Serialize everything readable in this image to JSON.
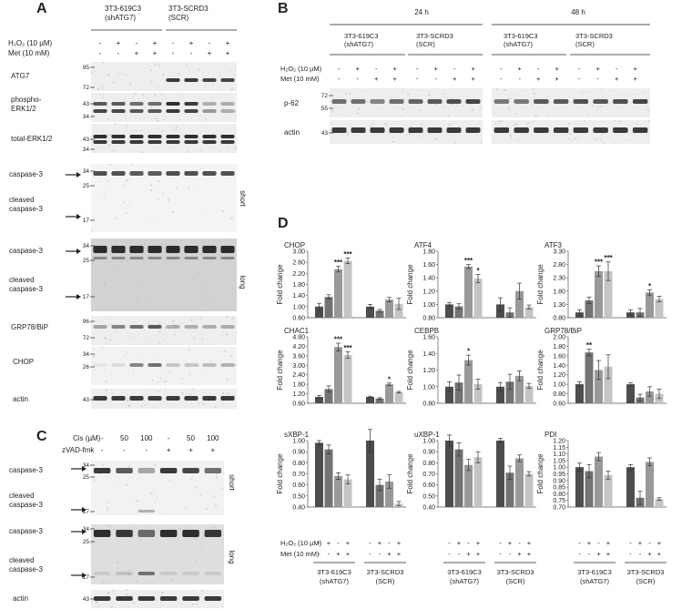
{
  "panels": {
    "A": {
      "letter": "A",
      "groups": [
        "3T3-619C3\n(shATG7)",
        "3T3-SCRD3\n(SCR)"
      ],
      "treatments": {
        "h2o2_label": "H₂O₂ (10 µM)",
        "met_label": "Met (10 mM)",
        "h2o2": [
          "-",
          "+",
          "-",
          "+",
          "-",
          "+",
          "-",
          "+"
        ],
        "met": [
          "-",
          "-",
          "+",
          "+",
          "-",
          "-",
          "+",
          "+"
        ]
      },
      "blots": [
        {
          "label": "ATG7",
          "markers": [
            "95",
            "72"
          ]
        },
        {
          "label": "phospho-\nERK1/2",
          "markers": [
            "43",
            "34"
          ]
        },
        {
          "label": "total-ERK1/2",
          "markers": [
            "43",
            "34"
          ]
        },
        {
          "label": "caspase-3\n\ncleaved\ncaspase-3",
          "markers": [
            "34",
            "25",
            "17"
          ],
          "side": "short"
        },
        {
          "label": "caspase-3\n\ncleaved\ncaspase-3",
          "markers": [
            "34",
            "25",
            "17"
          ],
          "side": "long"
        },
        {
          "label": "GRP78/BiP",
          "markers": [
            "96",
            "72"
          ]
        },
        {
          "label": "CHOP",
          "markers": [
            "34",
            "26"
          ]
        },
        {
          "label": "actin",
          "markers": [
            "43"
          ]
        }
      ]
    },
    "B": {
      "letter": "B",
      "timepoints": [
        "24 h",
        "48 h"
      ],
      "groups": [
        "3T3-619C3\n(shATG7)",
        "3T3-SCRD3\n(SCR)",
        "3T3-619C3\n(shATG7)",
        "3T3-SCRD3\n(SCR)"
      ],
      "h2o2_label": "H₂O₂ (10 µM)",
      "met_label": "Met (10 mM)",
      "h2o2": [
        "-",
        "+",
        "-",
        "+"
      ],
      "met": [
        "-",
        "-",
        "+",
        "+"
      ],
      "blots": [
        {
          "label": "p-62",
          "markers": [
            "72",
            "55"
          ]
        },
        {
          "label": "actin",
          "markers": [
            "43"
          ]
        }
      ]
    },
    "C": {
      "letter": "C",
      "cis_label": "Cis (µM)",
      "zvad_label": "zVAD-fmk",
      "cis": [
        "-",
        "50",
        "100",
        "-",
        "50",
        "100"
      ],
      "zvad": [
        "-",
        "-",
        "-",
        "+",
        "+",
        "+"
      ],
      "blots": [
        {
          "label": "caspase-3\n\ncleaved\ncaspase-3",
          "markers": [
            "34",
            "25",
            "17"
          ],
          "side": "short"
        },
        {
          "label": "caspase-3\n\ncleaved\ncaspase-3",
          "markers": [
            "34",
            "25",
            "17"
          ],
          "side": "long"
        },
        {
          "label": "actin",
          "markers": [
            "43"
          ]
        }
      ]
    },
    "D": {
      "letter": "D",
      "ylabel": "Fold change",
      "bottom": {
        "h2o2_label": "H₂O₂ (10 µM)",
        "met_label": "Met (10 mM)",
        "h2o2": [
          "-",
          "+",
          "-",
          "+"
        ],
        "met": [
          "-",
          "-",
          "+",
          "+"
        ],
        "groups": [
          "3T3-619C3\n(shATG7)",
          "3T3-SCRD3\n(SCR)"
        ]
      }
    }
  },
  "colors": [
    "#4d4d4d",
    "#737373",
    "#999999",
    "#c4c4c4"
  ],
  "chart_data": [
    {
      "type": "bar",
      "title": "CHOP",
      "ylim": [
        0.6,
        3.0
      ],
      "ticks": [
        "3.00",
        "2.60",
        "2.20",
        "1.80",
        "1.40",
        "1.00",
        "0.60"
      ],
      "series": [
        {
          "values": [
            1.0,
            1.35,
            2.35,
            2.65
          ],
          "err": [
            0.12,
            0.08,
            0.1,
            0.1
          ],
          "sig": [
            "",
            "",
            "***",
            "***"
          ]
        },
        {
          "values": [
            1.0,
            0.85,
            1.25,
            1.1
          ],
          "err": [
            0.08,
            0.05,
            0.08,
            0.2
          ],
          "sig": [
            "",
            "",
            "",
            ""
          ]
        }
      ]
    },
    {
      "type": "bar",
      "title": "ATF4",
      "ylim": [
        0.8,
        1.8
      ],
      "ticks": [
        "1.80",
        "1.60",
        "1.40",
        "1.20",
        "1.00",
        "0.80"
      ],
      "series": [
        {
          "values": [
            1.0,
            0.97,
            1.57,
            1.39
          ],
          "err": [
            0.03,
            0.04,
            0.03,
            0.06
          ],
          "sig": [
            "",
            "",
            "***",
            "*"
          ]
        },
        {
          "values": [
            1.0,
            0.88,
            1.2,
            0.96
          ],
          "err": [
            0.1,
            0.07,
            0.12,
            0.03
          ],
          "sig": [
            "",
            "",
            "",
            ""
          ]
        }
      ]
    },
    {
      "type": "bar",
      "title": "ATF3",
      "ylim": [
        0.8,
        3.3
      ],
      "ticks": [
        "3.30",
        "2.80",
        "2.30",
        "1.80",
        "1.30",
        "0.80"
      ],
      "series": [
        {
          "values": [
            1.0,
            1.45,
            2.55,
            2.55
          ],
          "err": [
            0.1,
            0.12,
            0.2,
            0.35
          ],
          "sig": [
            "",
            "",
            "***",
            "***"
          ]
        },
        {
          "values": [
            1.0,
            1.0,
            1.75,
            1.5
          ],
          "err": [
            0.1,
            0.15,
            0.1,
            0.1
          ],
          "sig": [
            "",
            "",
            "*",
            ""
          ]
        }
      ]
    },
    {
      "type": "bar",
      "title": "CHAC1",
      "ylim": [
        0.6,
        4.8
      ],
      "ticks": [
        "4.80",
        "4.20",
        "3.60",
        "3.00",
        "2.40",
        "1.80",
        "1.20",
        "0.60"
      ],
      "series": [
        {
          "values": [
            1.0,
            1.5,
            4.15,
            3.65
          ],
          "err": [
            0.1,
            0.2,
            0.25,
            0.2
          ],
          "sig": [
            "",
            "",
            "***",
            "***"
          ]
        },
        {
          "values": [
            1.0,
            0.9,
            1.8,
            1.3
          ],
          "err": [
            0.05,
            0.05,
            0.08,
            0.05
          ],
          "sig": [
            "",
            "",
            "*",
            ""
          ]
        }
      ]
    },
    {
      "type": "bar",
      "title": "CEBPB",
      "ylim": [
        0.8,
        1.6
      ],
      "ticks": [
        "1.60",
        "1.40",
        "1.20",
        "1.00",
        "0.80"
      ],
      "series": [
        {
          "values": [
            1.0,
            1.05,
            1.32,
            1.03
          ],
          "err": [
            0.06,
            0.09,
            0.06,
            0.06
          ],
          "sig": [
            "",
            "",
            "*",
            ""
          ]
        },
        {
          "values": [
            1.0,
            1.06,
            1.13,
            1.01
          ],
          "err": [
            0.05,
            0.09,
            0.06,
            0.03
          ],
          "sig": [
            "",
            "",
            "",
            ""
          ]
        }
      ]
    },
    {
      "type": "bar",
      "title": "GRP78/BiP",
      "ylim": [
        0.6,
        2.0
      ],
      "ticks": [
        "2.00",
        "1.80",
        "1.60",
        "1.40",
        "1.20",
        "1.00",
        "0.80",
        "0.60"
      ],
      "series": [
        {
          "values": [
            1.0,
            1.67,
            1.3,
            1.37
          ],
          "err": [
            0.05,
            0.07,
            0.2,
            0.25
          ],
          "sig": [
            "",
            "**",
            "",
            ""
          ]
        },
        {
          "values": [
            1.0,
            0.72,
            0.85,
            0.8
          ],
          "err": [
            0.03,
            0.07,
            0.1,
            0.1
          ],
          "sig": [
            "",
            "",
            "",
            ""
          ]
        }
      ]
    },
    {
      "type": "bar",
      "title": "sXBP-1",
      "ylim": [
        0.4,
        1.0
      ],
      "ticks": [
        "1.00",
        "0.90",
        "0.80",
        "0.70",
        "0.60",
        "0.50",
        "0.40"
      ],
      "series": [
        {
          "values": [
            0.98,
            0.92,
            0.68,
            0.65
          ],
          "err": [
            0.02,
            0.04,
            0.03,
            0.04
          ],
          "sig": [
            "",
            "",
            "",
            ""
          ]
        },
        {
          "values": [
            1.0,
            0.6,
            0.63,
            0.43
          ],
          "err": [
            0.1,
            0.05,
            0.06,
            0.02
          ],
          "sig": [
            "",
            "",
            "",
            ""
          ]
        }
      ]
    },
    {
      "type": "bar",
      "title": "uXBP-1",
      "ylim": [
        0.4,
        1.0
      ],
      "ticks": [
        "1.00",
        "0.90",
        "0.80",
        "0.70",
        "0.60",
        "0.50",
        "0.40"
      ],
      "series": [
        {
          "values": [
            1.0,
            0.92,
            0.78,
            0.85
          ],
          "err": [
            0.05,
            0.06,
            0.05,
            0.05
          ],
          "sig": [
            "",
            "",
            "",
            ""
          ]
        },
        {
          "values": [
            1.0,
            0.71,
            0.84,
            0.7
          ],
          "err": [
            0.02,
            0.06,
            0.03,
            0.02
          ],
          "sig": [
            "",
            "",
            "",
            ""
          ]
        }
      ]
    },
    {
      "type": "bar",
      "title": "PDI",
      "ylim": [
        0.7,
        1.2
      ],
      "ticks": [
        "1.20",
        "1.15",
        "1.10",
        "1.05",
        "1.00",
        "0.95",
        "0.90",
        "0.85",
        "0.80",
        "0.75",
        "0.70"
      ],
      "series": [
        {
          "values": [
            1.0,
            0.97,
            1.08,
            0.94
          ],
          "err": [
            0.03,
            0.05,
            0.03,
            0.03
          ],
          "sig": [
            "",
            "",
            "",
            ""
          ]
        },
        {
          "values": [
            1.0,
            0.77,
            1.04,
            0.76
          ],
          "err": [
            0.02,
            0.05,
            0.03,
            0.01
          ],
          "sig": [
            "",
            "",
            "",
            ""
          ]
        }
      ]
    }
  ]
}
